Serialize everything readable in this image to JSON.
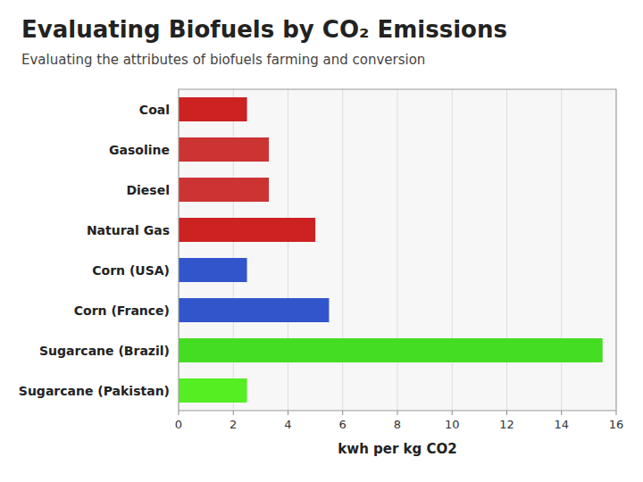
{
  "chart_data": {
    "type": "bar",
    "orientation": "horizontal",
    "title": "Evaluating Biofuels by CO₂ Emissions",
    "subtitle": "Evaluating the attributes of biofuels farming and conversion",
    "categories": [
      "Coal",
      "Gasoline",
      "Diesel",
      "Natural Gas",
      "Corn (USA)",
      "Corn (France)",
      "Sugarcane (Brazil)",
      "Sugarcane (Pakistan)"
    ],
    "values": [
      2.5,
      3.3,
      3.3,
      5.0,
      2.5,
      5.5,
      15.5,
      2.5
    ],
    "colors": [
      "#cc2222",
      "#cc3333",
      "#cc3333",
      "#cc2222",
      "#3355cc",
      "#3355cc",
      "#44dd22",
      "#55ee22"
    ],
    "xlabel": "kwh per kg CO2",
    "xlim": [
      0,
      16
    ],
    "xticks": [
      0,
      2,
      4,
      6,
      8,
      10,
      12,
      14,
      16
    ],
    "grid": true
  }
}
